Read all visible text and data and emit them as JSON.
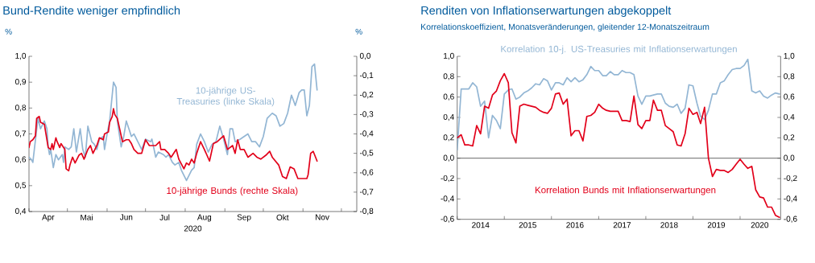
{
  "chart_data": [
    {
      "type": "line",
      "title": "Bund-Rendite weniger empfindlich",
      "ylabel": "%",
      "y2label": "%",
      "xlabel": "2020",
      "xlim": [
        "2020-04-01",
        "2020-12-13"
      ],
      "xticks": [
        {
          "value": "2020-04-01",
          "label": null
        },
        {
          "value": "2020-05-01",
          "label": null
        },
        {
          "value": "2020-06-01",
          "label": null
        },
        {
          "value": "2020-07-01",
          "label": null
        },
        {
          "value": "2020-08-01",
          "label": null
        },
        {
          "value": "2020-09-01",
          "label": null
        },
        {
          "value": "2020-10-01",
          "label": null
        },
        {
          "value": "2020-11-01",
          "label": null
        },
        {
          "value": "2020-12-01",
          "label": null
        },
        {
          "value": "2020-04-16",
          "label": "Apr"
        },
        {
          "value": "2020-05-16",
          "label": "Mai"
        },
        {
          "value": "2020-06-16",
          "label": "Jun"
        },
        {
          "value": "2020-07-16",
          "label": "Jul"
        },
        {
          "value": "2020-08-16",
          "label": "Aug"
        },
        {
          "value": "2020-09-16",
          "label": "Sep"
        },
        {
          "value": "2020-10-16",
          "label": "Okt"
        },
        {
          "value": "2020-11-16",
          "label": "Nov"
        }
      ],
      "ylim": [
        0.4,
        1.0
      ],
      "yticks": [
        {
          "value": 0.4,
          "label": "0,4"
        },
        {
          "value": 0.5,
          "label": "0,5"
        },
        {
          "value": 0.6,
          "label": "0,6"
        },
        {
          "value": 0.7,
          "label": "0,7"
        },
        {
          "value": 0.8,
          "label": "0,8"
        },
        {
          "value": 0.9,
          "label": "0,9"
        },
        {
          "value": 1.0,
          "label": "1,0"
        }
      ],
      "y2lim": [
        -0.8,
        0.0
      ],
      "y2ticks": [
        {
          "value": -0.8,
          "label": "-0,8"
        },
        {
          "value": -0.7,
          "label": "-0,7"
        },
        {
          "value": -0.6,
          "label": "-0,6"
        },
        {
          "value": -0.5,
          "label": "-0,5"
        },
        {
          "value": -0.4,
          "label": "-0,4"
        },
        {
          "value": -0.3,
          "label": "-0,3"
        },
        {
          "value": -0.2,
          "label": "-0,2"
        },
        {
          "value": -0.1,
          "label": "-0,1"
        },
        {
          "value": 0.0,
          "label": "0,0"
        }
      ],
      "series": [
        {
          "name": "10-jährige US-Treasuries (linke Skala)",
          "color": "#93b6d4",
          "axis": "y",
          "x": [
            "2020-04-01",
            "2020-04-03",
            "2020-04-04",
            "2020-04-08",
            "2020-04-10",
            "2020-04-13",
            "2020-04-15",
            "2020-04-16",
            "2020-04-17",
            "2020-04-18",
            "2020-04-20",
            "2020-04-22",
            "2020-04-24",
            "2020-04-27",
            "2020-04-28",
            "2020-04-29",
            "2020-05-02",
            "2020-05-04",
            "2020-05-06",
            "2020-05-08",
            "2020-05-11",
            "2020-05-13",
            "2020-05-15",
            "2020-05-17",
            "2020-05-20",
            "2020-05-22",
            "2020-05-24",
            "2020-05-26",
            "2020-05-29",
            "2020-05-30",
            "2020-06-01",
            "2020-06-03",
            "2020-06-05",
            "2020-06-06",
            "2020-06-08",
            "2020-06-09",
            "2020-06-12",
            "2020-06-14",
            "2020-06-16",
            "2020-06-18",
            "2020-06-20",
            "2020-06-22",
            "2020-06-26",
            "2020-06-28",
            "2020-07-01",
            "2020-07-05",
            "2020-07-06",
            "2020-07-09",
            "2020-07-11",
            "2020-07-15",
            "2020-07-17",
            "2020-07-19",
            "2020-07-22",
            "2020-07-24",
            "2020-07-27",
            "2020-07-29",
            "2020-08-02",
            "2020-08-06",
            "2020-08-08",
            "2020-08-10",
            "2020-08-13",
            "2020-08-16",
            "2020-08-19",
            "2020-08-22",
            "2020-08-25",
            "2020-08-28",
            "2020-08-31",
            "2020-09-03",
            "2020-09-05",
            "2020-09-07",
            "2020-09-09",
            "2020-09-13",
            "2020-09-16",
            "2020-09-19",
            "2020-09-22",
            "2020-09-25",
            "2020-09-28",
            "2020-10-01",
            "2020-10-04",
            "2020-10-08",
            "2020-10-11",
            "2020-10-14",
            "2020-10-17",
            "2020-10-20",
            "2020-10-23",
            "2020-10-26",
            "2020-10-29",
            "2020-10-31",
            "2020-11-02",
            "2020-11-04",
            "2020-11-06",
            "2020-11-08",
            "2020-11-10",
            "2020-11-12"
          ],
          "values": [
            0.61,
            0.6,
            0.59,
            0.76,
            0.72,
            0.75,
            0.72,
            0.65,
            0.62,
            0.64,
            0.57,
            0.62,
            0.6,
            0.62,
            0.59,
            0.65,
            0.64,
            0.65,
            0.72,
            0.63,
            0.72,
            0.64,
            0.61,
            0.73,
            0.67,
            0.66,
            0.64,
            0.68,
            0.69,
            0.64,
            0.7,
            0.75,
            0.85,
            0.9,
            0.88,
            0.75,
            0.65,
            0.69,
            0.75,
            0.72,
            0.69,
            0.7,
            0.66,
            0.64,
            0.68,
            0.67,
            0.68,
            0.61,
            0.63,
            0.62,
            0.61,
            0.62,
            0.59,
            0.58,
            0.59,
            0.56,
            0.52,
            0.56,
            0.57,
            0.66,
            0.7,
            0.67,
            0.63,
            0.66,
            0.67,
            0.73,
            0.68,
            0.62,
            0.72,
            0.72,
            0.67,
            0.68,
            0.69,
            0.7,
            0.67,
            0.67,
            0.65,
            0.69,
            0.76,
            0.78,
            0.77,
            0.73,
            0.74,
            0.78,
            0.85,
            0.81,
            0.86,
            0.87,
            0.87,
            0.77,
            0.81,
            0.96,
            0.97,
            0.87
          ]
        },
        {
          "name": "10-jährige Bunds (rechte Skala)",
          "color": "#e2001a",
          "axis": "y2",
          "x": [
            "2020-04-01",
            "2020-04-02",
            "2020-04-04",
            "2020-04-06",
            "2020-04-07",
            "2020-04-09",
            "2020-04-10",
            "2020-04-13",
            "2020-04-14",
            "2020-04-16",
            "2020-04-18",
            "2020-04-19",
            "2020-04-20",
            "2020-04-22",
            "2020-04-23",
            "2020-04-25",
            "2020-04-26",
            "2020-04-29",
            "2020-04-30",
            "2020-05-02",
            "2020-05-03",
            "2020-05-05",
            "2020-05-07",
            "2020-05-10",
            "2020-05-12",
            "2020-05-14",
            "2020-05-17",
            "2020-05-19",
            "2020-05-21",
            "2020-05-24",
            "2020-05-26",
            "2020-05-29",
            "2020-05-30",
            "2020-06-02",
            "2020-06-03",
            "2020-06-05",
            "2020-06-06",
            "2020-06-07",
            "2020-06-09",
            "2020-06-13",
            "2020-06-16",
            "2020-06-18",
            "2020-06-20",
            "2020-06-22",
            "2020-06-25",
            "2020-06-28",
            "2020-07-01",
            "2020-07-04",
            "2020-07-06",
            "2020-07-09",
            "2020-07-12",
            "2020-07-13",
            "2020-07-16",
            "2020-07-19",
            "2020-07-21",
            "2020-07-25",
            "2020-07-27",
            "2020-07-31",
            "2020-08-02",
            "2020-08-04",
            "2020-08-06",
            "2020-08-08",
            "2020-08-10",
            "2020-08-13",
            "2020-08-16",
            "2020-08-20",
            "2020-08-23",
            "2020-08-26",
            "2020-08-31",
            "2020-09-03",
            "2020-09-05",
            "2020-09-07",
            "2020-09-09",
            "2020-09-11",
            "2020-09-13",
            "2020-09-16",
            "2020-09-19",
            "2020-09-23",
            "2020-09-26",
            "2020-09-29",
            "2020-10-03",
            "2020-10-06",
            "2020-10-08",
            "2020-10-13",
            "2020-10-16",
            "2020-10-19",
            "2020-10-22",
            "2020-10-25",
            "2020-10-28",
            "2020-10-31",
            "2020-11-02",
            "2020-11-04",
            "2020-11-05",
            "2020-11-07",
            "2020-11-09",
            "2020-11-12"
          ],
          "values": [
            -0.47,
            -0.44,
            -0.43,
            -0.41,
            -0.32,
            -0.31,
            -0.34,
            -0.35,
            -0.39,
            -0.47,
            -0.48,
            -0.45,
            -0.48,
            -0.42,
            -0.44,
            -0.47,
            -0.45,
            -0.48,
            -0.58,
            -0.59,
            -0.56,
            -0.52,
            -0.55,
            -0.51,
            -0.5,
            -0.53,
            -0.48,
            -0.46,
            -0.5,
            -0.46,
            -0.42,
            -0.43,
            -0.4,
            -0.39,
            -0.34,
            -0.31,
            -0.27,
            -0.3,
            -0.32,
            -0.44,
            -0.43,
            -0.43,
            -0.45,
            -0.48,
            -0.5,
            -0.5,
            -0.43,
            -0.46,
            -0.46,
            -0.46,
            -0.44,
            -0.48,
            -0.48,
            -0.5,
            -0.52,
            -0.48,
            -0.53,
            -0.58,
            -0.55,
            -0.56,
            -0.53,
            -0.55,
            -0.5,
            -0.44,
            -0.48,
            -0.54,
            -0.45,
            -0.44,
            -0.41,
            -0.48,
            -0.47,
            -0.46,
            -0.5,
            -0.43,
            -0.48,
            -0.48,
            -0.52,
            -0.5,
            -0.52,
            -0.53,
            -0.51,
            -0.49,
            -0.52,
            -0.56,
            -0.62,
            -0.63,
            -0.57,
            -0.58,
            -0.63,
            -0.63,
            -0.63,
            -0.63,
            -0.61,
            -0.5,
            -0.49,
            -0.54
          ]
        }
      ]
    },
    {
      "type": "line",
      "title": "Renditen von Inflationserwartungen abgekoppelt",
      "subtitle": "Korrelationskoeffizient, Monatsveränderungen, gleitender 12-Monatszeitraum",
      "xlim": [
        "2014-01-01",
        "2020-11-10"
      ],
      "xticks": [
        {
          "value": "2014-01-01",
          "label": null
        },
        {
          "value": "2015-01-01",
          "label": null
        },
        {
          "value": "2016-01-01",
          "label": null
        },
        {
          "value": "2017-01-01",
          "label": null
        },
        {
          "value": "2018-01-01",
          "label": null
        },
        {
          "value": "2019-01-01",
          "label": null
        },
        {
          "value": "2020-01-01",
          "label": null
        },
        {
          "value": "2014-07-01",
          "label": "2014"
        },
        {
          "value": "2015-07-01",
          "label": "2015"
        },
        {
          "value": "2016-07-01",
          "label": "2016"
        },
        {
          "value": "2017-07-01",
          "label": "2017"
        },
        {
          "value": "2018-07-01",
          "label": "2018"
        },
        {
          "value": "2019-07-01",
          "label": "2019"
        },
        {
          "value": "2020-06-01",
          "label": "2020"
        }
      ],
      "ylim": [
        -0.6,
        1.0
      ],
      "yticks": [
        {
          "value": -0.6,
          "label": "-0,6"
        },
        {
          "value": -0.4,
          "label": "-0,4"
        },
        {
          "value": -0.2,
          "label": "-0,2"
        },
        {
          "value": 0.0,
          "label": "0,0"
        },
        {
          "value": 0.2,
          "label": "0,2"
        },
        {
          "value": 0.4,
          "label": "0,4"
        },
        {
          "value": 0.6,
          "label": "0,6"
        },
        {
          "value": 0.8,
          "label": "0,8"
        },
        {
          "value": 1.0,
          "label": "1,0"
        }
      ],
      "y2lim": [
        -0.6,
        1.0
      ],
      "y2ticks": [
        {
          "value": -0.6,
          "label": "-0,6"
        },
        {
          "value": -0.4,
          "label": "-0,4"
        },
        {
          "value": -0.2,
          "label": "-0,2"
        },
        {
          "value": 0.0,
          "label": "0,0"
        },
        {
          "value": 0.2,
          "label": "0,2"
        },
        {
          "value": 0.4,
          "label": "0,4"
        },
        {
          "value": 0.6,
          "label": "0,6"
        },
        {
          "value": 0.8,
          "label": "0,8"
        },
        {
          "value": 1.0,
          "label": "1,0"
        }
      ],
      "ref_lines": [
        {
          "axis": "y",
          "value": 0.0,
          "color": "#404040"
        }
      ],
      "x": [
        "2014-01",
        "2014-02",
        "2014-03",
        "2014-04",
        "2014-05",
        "2014-06",
        "2014-07",
        "2014-08",
        "2014-09",
        "2014-10",
        "2014-11",
        "2014-12",
        "2015-01",
        "2015-02",
        "2015-03",
        "2015-04",
        "2015-05",
        "2015-06",
        "2015-07",
        "2015-08",
        "2015-09",
        "2015-10",
        "2015-11",
        "2015-12",
        "2016-01",
        "2016-02",
        "2016-03",
        "2016-04",
        "2016-05",
        "2016-06",
        "2016-07",
        "2016-08",
        "2016-09",
        "2016-10",
        "2016-11",
        "2016-12",
        "2017-01",
        "2017-02",
        "2017-03",
        "2017-04",
        "2017-05",
        "2017-06",
        "2017-07",
        "2017-08",
        "2017-09",
        "2017-10",
        "2017-11",
        "2017-12",
        "2018-01",
        "2018-02",
        "2018-03",
        "2018-04",
        "2018-05",
        "2018-06",
        "2018-07",
        "2018-08",
        "2018-09",
        "2018-10",
        "2018-11",
        "2018-12",
        "2019-01",
        "2019-02",
        "2019-03",
        "2019-04",
        "2019-05",
        "2019-06",
        "2019-07",
        "2019-08",
        "2019-09",
        "2019-10",
        "2019-11",
        "2019-12",
        "2020-01",
        "2020-02",
        "2020-03",
        "2020-04",
        "2020-05",
        "2020-06",
        "2020-07",
        "2020-08",
        "2020-09",
        "2020-10",
        "2020-11"
      ],
      "series": [
        {
          "name": "Korrelation 10-j. US-Treasuries mit Inflationserwartungen",
          "color": "#93b6d4",
          "values": [
            0.08,
            0.68,
            0.68,
            0.68,
            0.74,
            0.7,
            0.51,
            0.56,
            0.2,
            0.42,
            0.37,
            0.29,
            0.63,
            0.67,
            0.68,
            0.58,
            0.6,
            0.64,
            0.66,
            0.69,
            0.73,
            0.72,
            0.78,
            0.76,
            0.67,
            0.74,
            0.74,
            0.72,
            0.79,
            0.75,
            0.79,
            0.75,
            0.77,
            0.82,
            0.9,
            0.86,
            0.86,
            0.81,
            0.81,
            0.85,
            0.82,
            0.82,
            0.86,
            0.84,
            0.84,
            0.82,
            0.61,
            0.53,
            0.61,
            0.61,
            0.62,
            0.63,
            0.63,
            0.54,
            0.51,
            0.5,
            0.53,
            0.44,
            0.49,
            0.72,
            0.71,
            0.54,
            0.41,
            0.38,
            0.47,
            0.63,
            0.63,
            0.74,
            0.76,
            0.82,
            0.87,
            0.88,
            0.88,
            0.91,
            0.97,
            0.66,
            0.64,
            0.66,
            0.61,
            0.59,
            0.62,
            0.64,
            0.63
          ]
        },
        {
          "name": "Korrelation Bunds mit Inflationserwartungen",
          "color": "#e2001a",
          "values": [
            0.2,
            0.23,
            0.13,
            0.13,
            0.12,
            0.32,
            0.24,
            0.51,
            0.49,
            0.62,
            0.66,
            0.76,
            0.83,
            0.74,
            0.25,
            0.15,
            0.51,
            0.53,
            0.52,
            0.51,
            0.5,
            0.47,
            0.45,
            0.44,
            0.49,
            0.63,
            0.64,
            0.53,
            0.58,
            0.22,
            0.27,
            0.27,
            0.17,
            0.41,
            0.42,
            0.45,
            0.53,
            0.49,
            0.47,
            0.46,
            0.46,
            0.46,
            0.37,
            0.37,
            0.36,
            0.61,
            0.33,
            0.29,
            0.37,
            0.37,
            0.57,
            0.47,
            0.47,
            0.32,
            0.29,
            0.26,
            0.13,
            0.12,
            0.24,
            0.49,
            0.43,
            0.45,
            0.34,
            0.5,
            0.0,
            -0.18,
            -0.11,
            -0.12,
            -0.12,
            -0.14,
            -0.11,
            -0.06,
            -0.01,
            -0.06,
            -0.1,
            -0.08,
            -0.31,
            -0.38,
            -0.39,
            -0.48,
            -0.48,
            -0.56,
            -0.58
          ]
        }
      ]
    }
  ]
}
